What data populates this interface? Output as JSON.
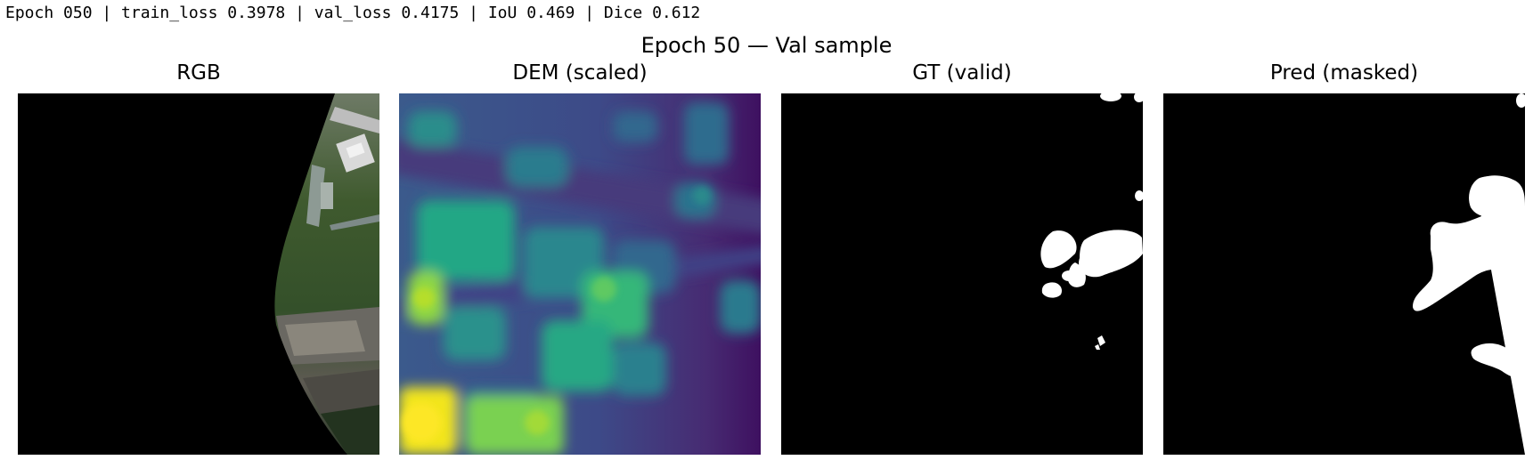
{
  "log_line": "Epoch 050 | train_loss 0.3978 | val_loss 0.4175 | IoU 0.469 | Dice 0.612",
  "figure": {
    "suptitle": "Epoch 50 — Val sample",
    "panels": [
      {
        "title": "RGB",
        "content": "aerial-rgb-image"
      },
      {
        "title": "DEM (scaled)",
        "content": "viridis-elevation-map"
      },
      {
        "title": "GT (valid)",
        "content": "binary-mask"
      },
      {
        "title": "Pred (masked)",
        "content": "binary-mask"
      }
    ]
  },
  "colors": {
    "background": "#ffffff",
    "mask_foreground": "#ffffff",
    "mask_background": "#000000",
    "viridis_low": "#440154",
    "viridis_mid": "#21918c",
    "viridis_high": "#fde725"
  }
}
